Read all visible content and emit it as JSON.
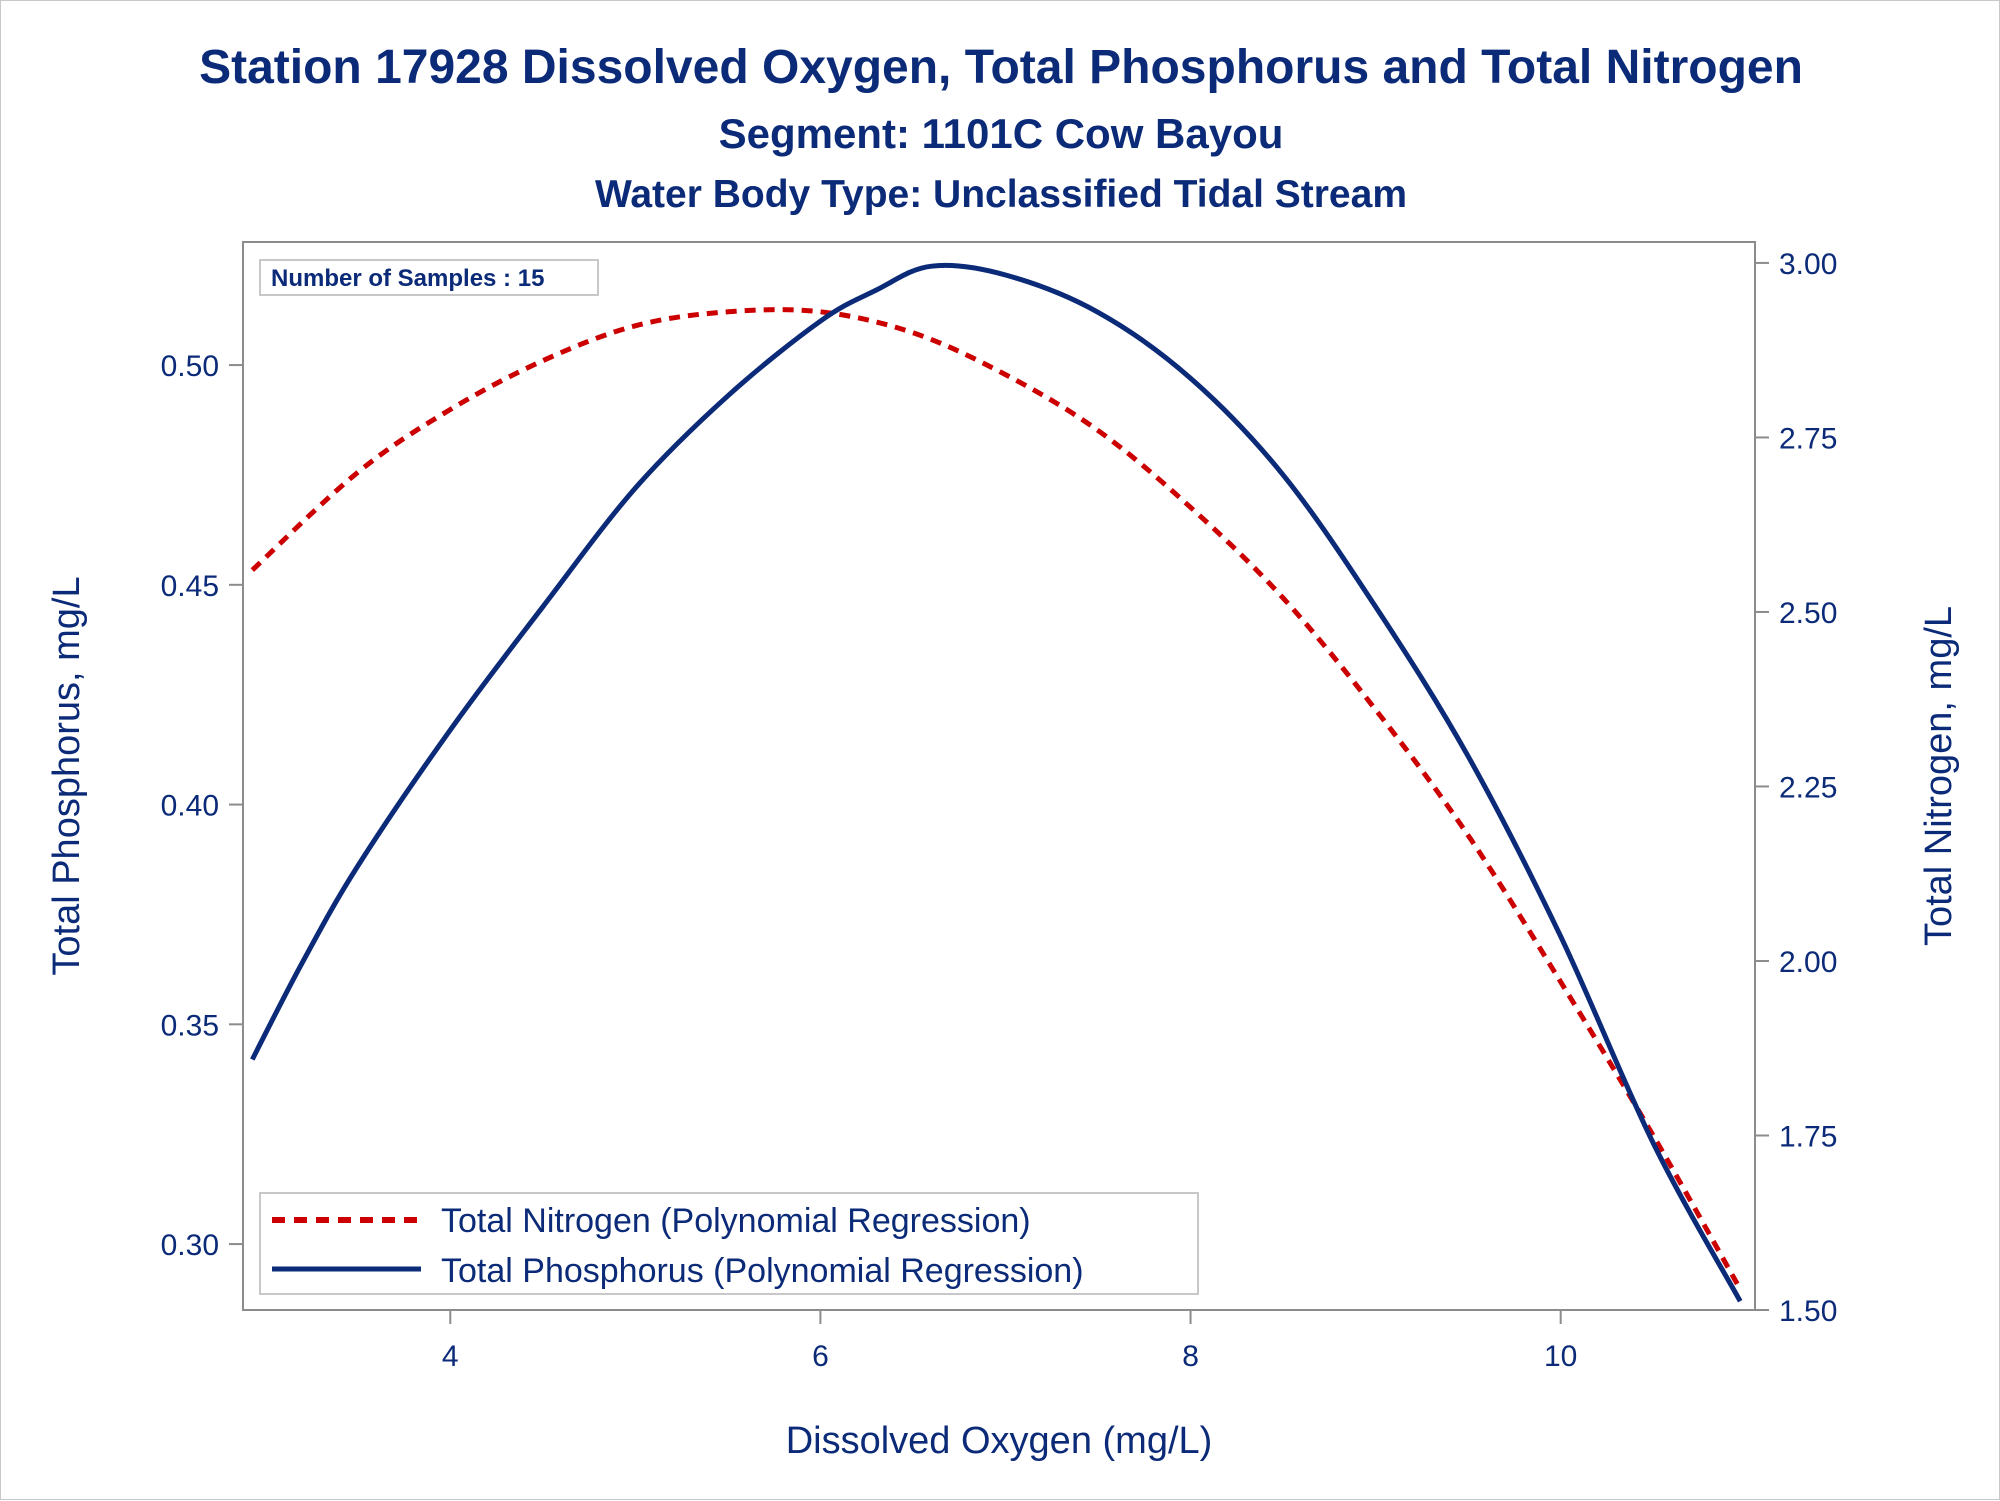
{
  "chart_data": {
    "type": "line",
    "title": "Station 17928  Dissolved Oxygen, Total Phosphorus and Total Nitrogen",
    "subtitle": "Segment: 1101C  Cow Bayou",
    "subtitle2": "Water Body Type: Unclassified Tidal Stream",
    "xlabel": "Dissolved Oxygen (mg/L)",
    "ylabel_left": "Total Phosphorus, mg/L",
    "ylabel_right": "Total Nitrogen, mg/L",
    "xlim": [
      2.88,
      11.05
    ],
    "ylim_left": [
      0.285,
      0.528
    ],
    "ylim_right": [
      1.5,
      3.03
    ],
    "x_ticks": [
      "4",
      "6",
      "8",
      "10"
    ],
    "y_left_ticks": [
      "0.30",
      "0.35",
      "0.40",
      "0.45",
      "0.50"
    ],
    "y_right_ticks": [
      "1.50",
      "1.75",
      "2.00",
      "2.25",
      "2.50",
      "2.75",
      "3.00"
    ],
    "annotation": "Number of Samples : 15",
    "grid": false,
    "legend_position": "bottom-left",
    "series": [
      {
        "name": "Total Nitrogen (Polynomial Regression)",
        "axis": "right",
        "color": "#cc0000",
        "dash": "dashed",
        "x": [
          2.93,
          3.5,
          4.0,
          4.5,
          5.0,
          5.5,
          6.0,
          6.5,
          7.0,
          7.5,
          8.0,
          8.5,
          9.0,
          9.5,
          10.0,
          10.5,
          10.97
        ],
        "y": [
          2.56,
          2.7,
          2.79,
          2.86,
          2.91,
          2.93,
          2.93,
          2.9,
          2.84,
          2.76,
          2.65,
          2.52,
          2.36,
          2.18,
          1.97,
          1.75,
          1.53
        ]
      },
      {
        "name": "Total Phosphorus (Polynomial Regression)",
        "axis": "left",
        "color": "#0b2a78",
        "dash": "solid",
        "x": [
          2.93,
          3.2,
          3.5,
          4.0,
          4.5,
          5.0,
          5.5,
          6.0,
          6.3,
          6.6,
          7.0,
          7.5,
          8.0,
          8.5,
          9.0,
          9.5,
          10.0,
          10.5,
          10.97
        ],
        "y": [
          0.342,
          0.364,
          0.386,
          0.417,
          0.445,
          0.472,
          0.493,
          0.51,
          0.517,
          0.5225,
          0.5205,
          0.512,
          0.497,
          0.475,
          0.445,
          0.411,
          0.37,
          0.323,
          0.287
        ]
      }
    ]
  }
}
